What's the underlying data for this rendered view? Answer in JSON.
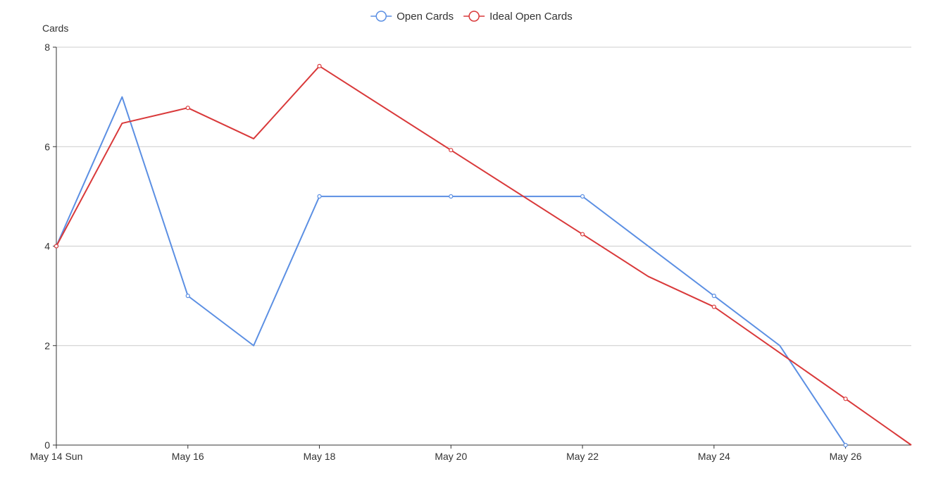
{
  "chart_data": {
    "type": "line",
    "ylabel": "Cards",
    "xlabel": "",
    "ylim": [
      0,
      8
    ],
    "y_ticks": [
      0,
      2,
      4,
      6,
      8
    ],
    "x_range": [
      "2023-05-14",
      "2023-05-27"
    ],
    "x_ticks": [
      {
        "x": "2023-05-14",
        "label": "May 14 Sun"
      },
      {
        "x": "2023-05-16",
        "label": "May 16"
      },
      {
        "x": "2023-05-18",
        "label": "May 18"
      },
      {
        "x": "2023-05-20",
        "label": "May 20"
      },
      {
        "x": "2023-05-22",
        "label": "May 22"
      },
      {
        "x": "2023-05-24",
        "label": "May 24"
      },
      {
        "x": "2023-05-26",
        "label": "May 26"
      }
    ],
    "grid": "horizontal",
    "legend_position": "top-center",
    "series": [
      {
        "name": "Open Cards",
        "color": "#5b8fe3",
        "points": [
          {
            "x": "2023-05-14",
            "y": 4,
            "marker": true
          },
          {
            "x": "2023-05-15",
            "y": 7,
            "marker": false
          },
          {
            "x": "2023-05-16",
            "y": 3,
            "marker": true
          },
          {
            "x": "2023-05-17",
            "y": 2,
            "marker": false
          },
          {
            "x": "2023-05-18",
            "y": 5,
            "marker": true
          },
          {
            "x": "2023-05-20",
            "y": 5,
            "marker": true
          },
          {
            "x": "2023-05-22",
            "y": 5,
            "marker": true
          },
          {
            "x": "2023-05-24",
            "y": 3,
            "marker": true
          },
          {
            "x": "2023-05-25",
            "y": 2,
            "marker": false
          },
          {
            "x": "2023-05-26",
            "y": 0,
            "marker": true
          }
        ]
      },
      {
        "name": "Ideal Open Cards",
        "color": "#d9393a",
        "points": [
          {
            "x": "2023-05-14",
            "y": 4.0,
            "marker": true
          },
          {
            "x": "2023-05-15",
            "y": 6.47,
            "marker": false
          },
          {
            "x": "2023-05-16",
            "y": 6.78,
            "marker": true
          },
          {
            "x": "2023-05-17",
            "y": 6.16,
            "marker": false
          },
          {
            "x": "2023-05-18",
            "y": 7.62,
            "marker": true
          },
          {
            "x": "2023-05-20",
            "y": 5.93,
            "marker": true
          },
          {
            "x": "2023-05-22",
            "y": 4.24,
            "marker": true
          },
          {
            "x": "2023-05-23",
            "y": 3.39,
            "marker": false
          },
          {
            "x": "2023-05-24",
            "y": 2.78,
            "marker": true
          },
          {
            "x": "2023-05-26",
            "y": 0.93,
            "marker": true
          },
          {
            "x": "2023-05-27",
            "y": 0.0,
            "marker": false
          }
        ]
      }
    ]
  }
}
